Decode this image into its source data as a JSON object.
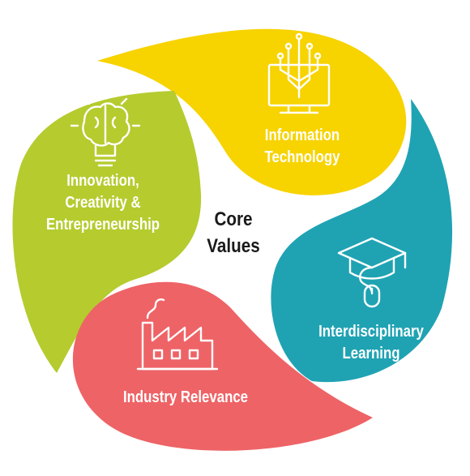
{
  "center": {
    "line1": "Core",
    "line2": "Values"
  },
  "segments": [
    {
      "id": "it",
      "lines": [
        "Information",
        "Technology"
      ],
      "icon": "computer-circuit-icon",
      "color": "#f7d300"
    },
    {
      "id": "ice",
      "lines": [
        "Innovation,",
        "Creativity &",
        "Entrepreneurship"
      ],
      "icon": "brain-lightbulb-icon",
      "color": "#b6cb2e"
    },
    {
      "id": "il",
      "lines": [
        "Interdisciplinary",
        "Learning"
      ],
      "icon": "graduation-cap-mouse-icon",
      "color": "#1fa3b3"
    },
    {
      "id": "ir",
      "lines": [
        "Industry Relevance"
      ],
      "icon": "factory-icon",
      "color": "#ee6366"
    }
  ]
}
